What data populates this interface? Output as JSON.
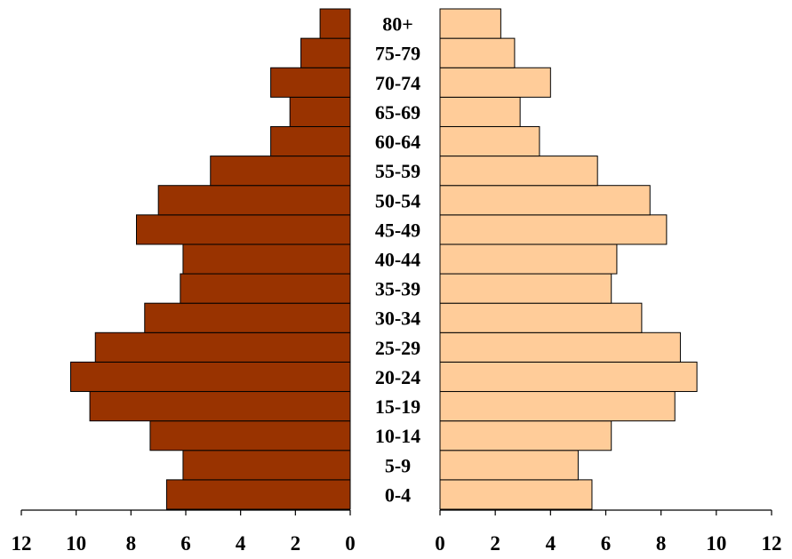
{
  "chart_data": {
    "type": "bar",
    "orientation": "horizontal",
    "title": "",
    "xlabel": "",
    "ylabel": "",
    "categories": [
      "0-4",
      "5-9",
      "10-14",
      "15-19",
      "20-24",
      "25-29",
      "30-34",
      "35-39",
      "40-44",
      "45-49",
      "50-54",
      "55-59",
      "60-64",
      "65-69",
      "70-74",
      "75-79",
      "80+"
    ],
    "series": [
      {
        "side": "left",
        "color": "#993300",
        "values": [
          6.7,
          6.1,
          7.3,
          9.5,
          10.2,
          9.3,
          7.5,
          6.2,
          6.1,
          7.8,
          7.0,
          5.1,
          2.9,
          2.2,
          2.9,
          1.8,
          1.1
        ]
      },
      {
        "side": "right",
        "color": "#FFCC99",
        "values": [
          5.5,
          5.0,
          6.2,
          8.5,
          9.3,
          8.7,
          7.3,
          6.2,
          6.4,
          8.2,
          7.6,
          5.7,
          3.6,
          2.9,
          4.0,
          2.7,
          2.2
        ]
      }
    ],
    "xlim": [
      0,
      12
    ],
    "left_ticks": [
      "12",
      "10",
      "8",
      "6",
      "4",
      "2",
      "0"
    ],
    "right_ticks": [
      "0",
      "2",
      "4",
      "6",
      "8",
      "10",
      "12"
    ],
    "grid": false,
    "legend": "none"
  }
}
